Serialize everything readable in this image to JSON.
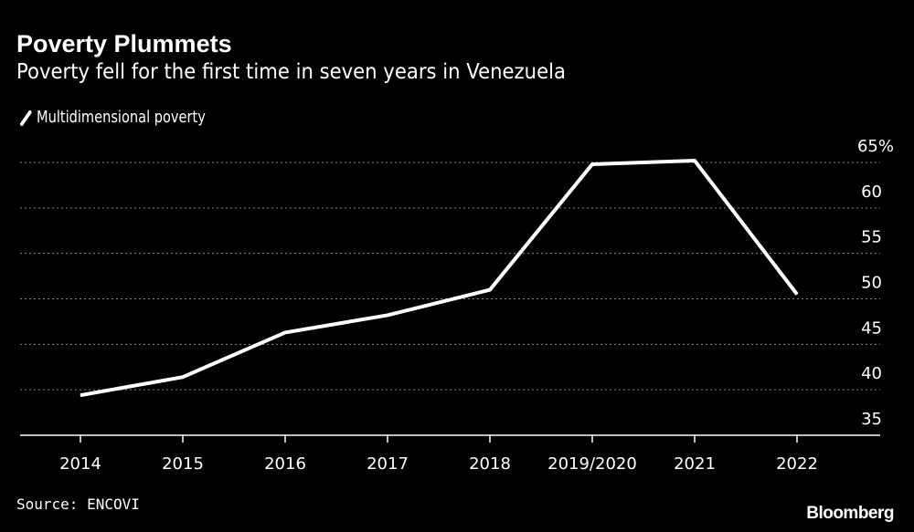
{
  "chart_data": {
    "type": "line",
    "title": "Poverty Plummets",
    "subtitle": "Poverty fell for the first time in seven years in Venezuela",
    "categories": [
      "2014",
      "2015",
      "2016",
      "2017",
      "2018",
      "2019/2020",
      "2021",
      "2022"
    ],
    "series": [
      {
        "name": "Multidimensional poverty",
        "values": [
          39.4,
          41.4,
          46.3,
          48.2,
          51.0,
          64.8,
          65.2,
          50.5
        ],
        "color": "#ffffff"
      }
    ],
    "yticks": [
      35,
      40,
      45,
      50,
      55,
      60,
      65
    ],
    "ytick_labels": [
      "35",
      "40",
      "45",
      "50",
      "55",
      "60",
      "65%"
    ],
    "ylim": [
      35,
      65
    ],
    "xlabel": "",
    "ylabel": "",
    "grid": true,
    "legend_position": "top-left",
    "source": "Source: ENCOVI",
    "brand": "Bloomberg"
  }
}
